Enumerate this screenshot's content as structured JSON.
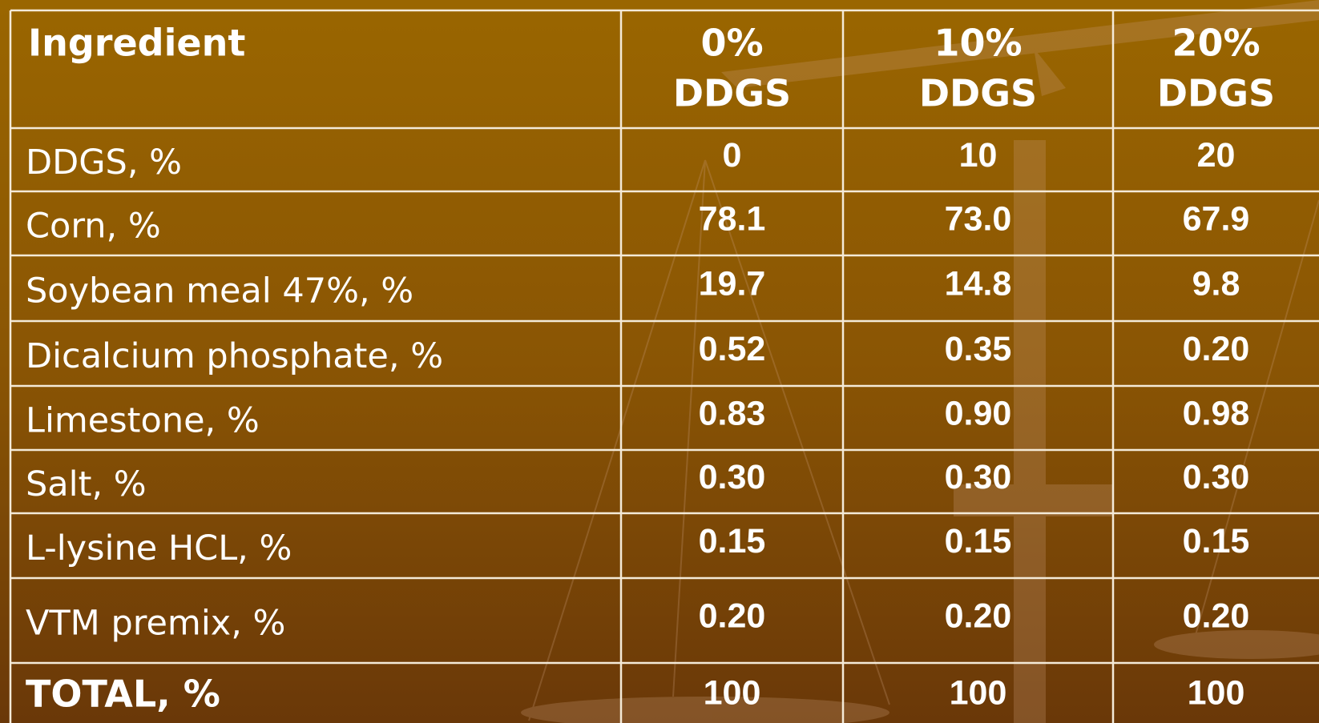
{
  "table": {
    "header": {
      "ingredient": "Ingredient",
      "diets": [
        [
          "0%",
          "DDGS"
        ],
        [
          "10%",
          "DDGS"
        ],
        [
          "20%",
          "DDGS"
        ]
      ]
    },
    "rows": [
      [
        "DDGS, %",
        "0",
        "10",
        "20"
      ],
      [
        "Corn, %",
        "78.1",
        "73.0",
        "67.9"
      ],
      [
        "Soybean meal 47%, %",
        "19.7",
        "14.8",
        "9.8"
      ],
      [
        "Dicalcium phosphate, %",
        "0.52",
        "0.35",
        "0.20"
      ],
      [
        "Limestone, %",
        "0.83",
        "0.90",
        "0.98"
      ],
      [
        "Salt, %",
        "0.30",
        "0.30",
        "0.30"
      ],
      [
        "L-lysine HCL, %",
        "0.15",
        "0.15",
        "0.15"
      ],
      [
        "VTM premix, %",
        "0.20",
        "0.20",
        "0.20"
      ]
    ],
    "total": [
      "TOTAL, %",
      "100",
      "100",
      "100"
    ]
  }
}
